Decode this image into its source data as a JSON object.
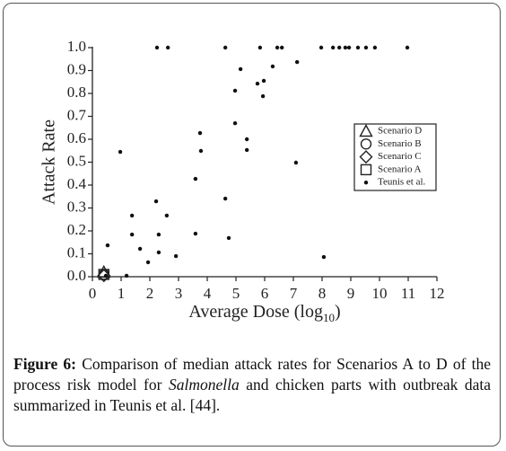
{
  "chart_data": {
    "type": "scatter",
    "ylabel": "Attack Rate",
    "xlabel": [
      "Average Dose (log",
      "10",
      ")"
    ],
    "xlim": [
      0,
      12
    ],
    "xticks": [
      0,
      1,
      2,
      3,
      4,
      5,
      6,
      7,
      8,
      9,
      10,
      11,
      12
    ],
    "ylim": [
      0,
      1
    ],
    "yticks": [
      {
        "value": 0,
        "label": "0.0"
      },
      0.1,
      0.2,
      0.3,
      0.4,
      0.5,
      0.6,
      0.7,
      0.8,
      0.9,
      {
        "value": 1,
        "label": "1.0"
      }
    ],
    "series": [
      {
        "name": "Scenario D",
        "marker": "triangle",
        "color": "#222",
        "x": [
          0.4
        ],
        "y": [
          0.02
        ]
      },
      {
        "name": "Scenario B",
        "marker": "circle",
        "color": "#222",
        "x": [
          0.4
        ],
        "y": [
          0.01
        ]
      },
      {
        "name": "Scenario C",
        "marker": "diamond",
        "color": "#222",
        "x": [
          0.4
        ],
        "y": [
          0.005
        ]
      },
      {
        "name": "Scenario A",
        "marker": "square",
        "color": "#222",
        "x": [
          0.4
        ],
        "y": [
          0.01
        ]
      },
      {
        "name": "Teunis et al.",
        "marker": "dot",
        "color": "#111",
        "x": [
          2.25,
          2.63,
          4.63,
          5.84,
          6.44,
          6.6,
          7.97,
          8.38,
          8.6,
          8.81,
          8.94,
          9.25,
          9.53,
          9.84,
          10.97,
          5.16,
          7.13,
          6.28,
          5.97,
          5.75,
          5.94,
          4.97,
          3.75,
          4.97,
          5.38,
          5.38,
          3.78,
          7.09,
          0.97,
          3.59,
          4.63,
          2.22,
          1.38,
          2.59,
          1.38,
          2.31,
          3.59,
          4.75,
          0.53,
          1.66,
          2.31,
          2.91,
          1.94,
          8.06,
          1.19,
          0.47
        ],
        "y": [
          1,
          1,
          1,
          1,
          1,
          1,
          1,
          1,
          1,
          1,
          1,
          1,
          1,
          1,
          1,
          0.906,
          0.937,
          0.918,
          0.855,
          0.843,
          0.788,
          0.812,
          0.627,
          0.67,
          0.6,
          0.553,
          0.549,
          0.498,
          0.545,
          0.427,
          0.341,
          0.329,
          0.267,
          0.267,
          0.184,
          0.184,
          0.188,
          0.169,
          0.137,
          0.122,
          0.106,
          0.09,
          0.063,
          0.086,
          0.004,
          0.004
        ]
      }
    ]
  },
  "caption": {
    "label": "Figure 6:",
    "text1": "Comparison of median attack rates for Scenarios A to D of the process risk model for",
    "italic": "Salmonella",
    "text2": "and chicken parts with outbreak data summarized in Teunis et al. [44]."
  }
}
